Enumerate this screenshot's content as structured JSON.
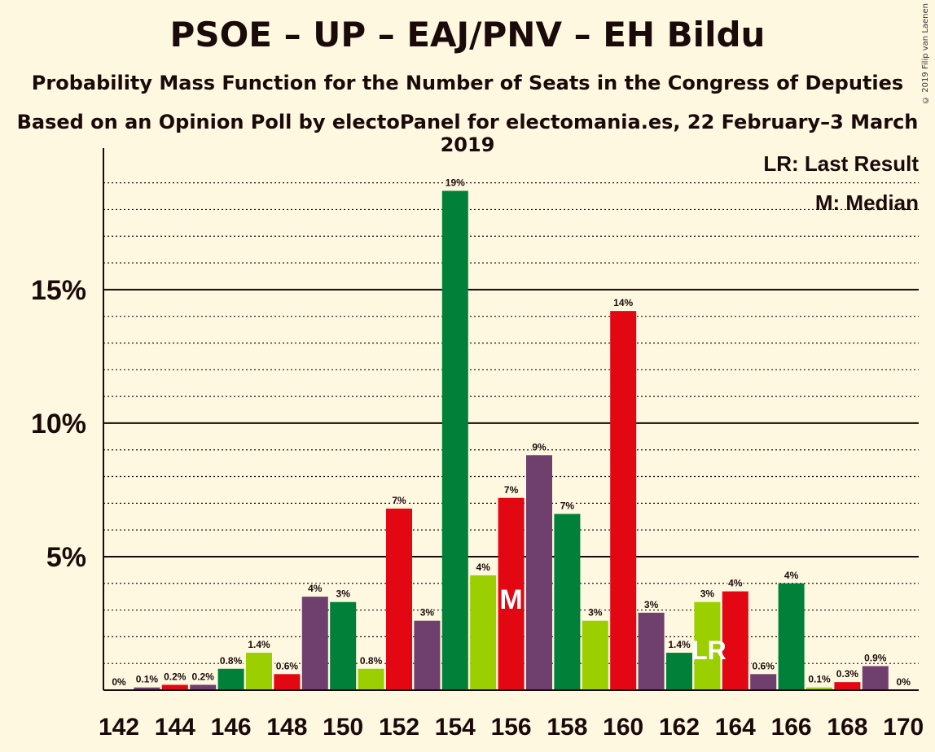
{
  "title": "PSOE – UP – EAJ/PNV – EH Bildu",
  "subtitle": "Probability Mass Function for the Number of Seats in the Congress of Deputies",
  "subtitle2": "Based on an Opinion Poll by electoPanel for electomania.es, 22 February–3 March 2019",
  "copyright": "© 2019 Filip van Laenen",
  "legend": {
    "last_result": "LR: Last Result",
    "median": "M: Median"
  },
  "colors": {
    "background": "#fff8e1",
    "bars": [
      "#e30613",
      "#6f3f6e",
      "#008038",
      "#9ccf00"
    ]
  },
  "chart_data": {
    "type": "bar",
    "x": [
      142,
      143,
      144,
      145,
      146,
      147,
      148,
      149,
      150,
      151,
      152,
      153,
      154,
      155,
      156,
      157,
      158,
      159,
      160,
      161,
      162,
      163,
      164,
      165,
      166,
      167,
      168,
      169,
      170
    ],
    "values": [
      0,
      0.1,
      0.2,
      0.2,
      0.8,
      1.4,
      0.6,
      3.5,
      3.3,
      0.8,
      6.8,
      2.6,
      18.7,
      4.3,
      7.2,
      8.8,
      6.6,
      2.6,
      14.2,
      2.9,
      1.4,
      3.3,
      3.7,
      0.6,
      4.0,
      0.1,
      0.3,
      0.9,
      0
    ],
    "labels": [
      "0%",
      "0.1%",
      "0.2%",
      "0.2%",
      "0.8%",
      "1.4%",
      "0.6%",
      "4%",
      "3%",
      "0.8%",
      "7%",
      "3%",
      "19%",
      "4%",
      "7%",
      "9%",
      "7%",
      "3%",
      "14%",
      "3%",
      "1.4%",
      "3%",
      "4%",
      "0.6%",
      "4%",
      "0.1%",
      "0.3%",
      "0.9%",
      "0%"
    ],
    "colors": [
      "#e30613",
      "#6f3f6e",
      "#e30613",
      "#6f3f6e",
      "#008038",
      "#9ccf00",
      "#e30613",
      "#6f3f6e",
      "#008038",
      "#9ccf00",
      "#e30613",
      "#6f3f6e",
      "#008038",
      "#9ccf00",
      "#e30613",
      "#6f3f6e",
      "#008038",
      "#9ccf00",
      "#e30613",
      "#6f3f6e",
      "#008038",
      "#9ccf00",
      "#e30613",
      "#6f3f6e",
      "#008038",
      "#9ccf00",
      "#e30613",
      "#6f3f6e",
      "#008038"
    ],
    "x_tick_labels": [
      "142",
      "144",
      "146",
      "148",
      "150",
      "152",
      "154",
      "156",
      "158",
      "160",
      "162",
      "164",
      "166",
      "168",
      "170"
    ],
    "y_tick_labels": [
      "5%",
      "10%",
      "15%"
    ],
    "y_ticks": [
      5,
      10,
      15
    ],
    "ylim": [
      0,
      20.3
    ],
    "median_seat": 156,
    "median_marker": "M",
    "last_result_seat": 163,
    "last_result_marker": "LR",
    "grid": true
  }
}
